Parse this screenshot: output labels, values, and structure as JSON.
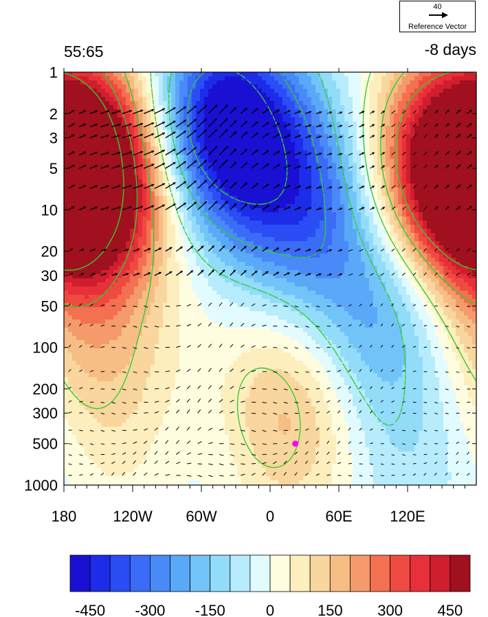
{
  "title_left": "55:65",
  "title_right": "-8 days",
  "reference_vector": {
    "magnitude": "40",
    "label": "Reference Vector"
  },
  "chart_data": {
    "type": "heatmap",
    "overlays": [
      "contour",
      "vector"
    ],
    "x_ticks": [
      {
        "lon": -180,
        "label": "180"
      },
      {
        "lon": -120,
        "label": "120W"
      },
      {
        "lon": -60,
        "label": "60W"
      },
      {
        "lon": 0,
        "label": "0"
      },
      {
        "lon": 60,
        "label": "60E"
      },
      {
        "lon": 120,
        "label": "120E"
      }
    ],
    "xlim": [
      -180,
      180
    ],
    "y_scale": "log",
    "y_reversed": true,
    "ylim": [
      1,
      1000
    ],
    "y_ticks": [
      1,
      2,
      3,
      5,
      10,
      20,
      30,
      50,
      100,
      200,
      300,
      500,
      1000
    ],
    "colorbar": {
      "levels": [
        -450,
        -400,
        -350,
        -300,
        -250,
        -200,
        -150,
        -100,
        -50,
        0,
        50,
        100,
        150,
        200,
        250,
        300,
        350,
        400,
        450
      ],
      "tick_labels": [
        "-450",
        "-300",
        "-150",
        "0",
        "150",
        "300",
        "450"
      ],
      "tick_values": [
        -450,
        -300,
        -150,
        0,
        150,
        300,
        450
      ],
      "colors": [
        "#1a10d4",
        "#1c2ce8",
        "#2a4df5",
        "#3a6cf8",
        "#4a8af8",
        "#5aa8f8",
        "#72c4f8",
        "#92dcfa",
        "#b6ecfc",
        "#e2fbfe",
        "#fffde0",
        "#fdeebe",
        "#f9d69e",
        "#f6bd84",
        "#f59a6a",
        "#f37050",
        "#ef4a40",
        "#e8303a",
        "#d01e2e",
        "#a0101e"
      ]
    },
    "field_anomalies": [
      {
        "lon": -150,
        "p": 6,
        "value": 560
      },
      {
        "lon": 160,
        "p": 5,
        "value": 560
      },
      {
        "lon": -40,
        "p": 2.5,
        "value": -540
      },
      {
        "lon": 30,
        "p": 9,
        "value": -300
      },
      {
        "lon": 100,
        "p": 60,
        "value": -220
      },
      {
        "lon": 10,
        "p": 300,
        "value": 220
      },
      {
        "lon": -120,
        "p": 300,
        "value": 90
      },
      {
        "lon": -50,
        "p": 400,
        "value": -100
      },
      {
        "lon": 125,
        "p": 600,
        "value": -90
      },
      {
        "lon": -170,
        "p": 80,
        "value": 120
      }
    ],
    "marker": {
      "lon": 22,
      "p": 500,
      "color": "#ff00ff"
    },
    "contour_color": "#32cd32"
  }
}
